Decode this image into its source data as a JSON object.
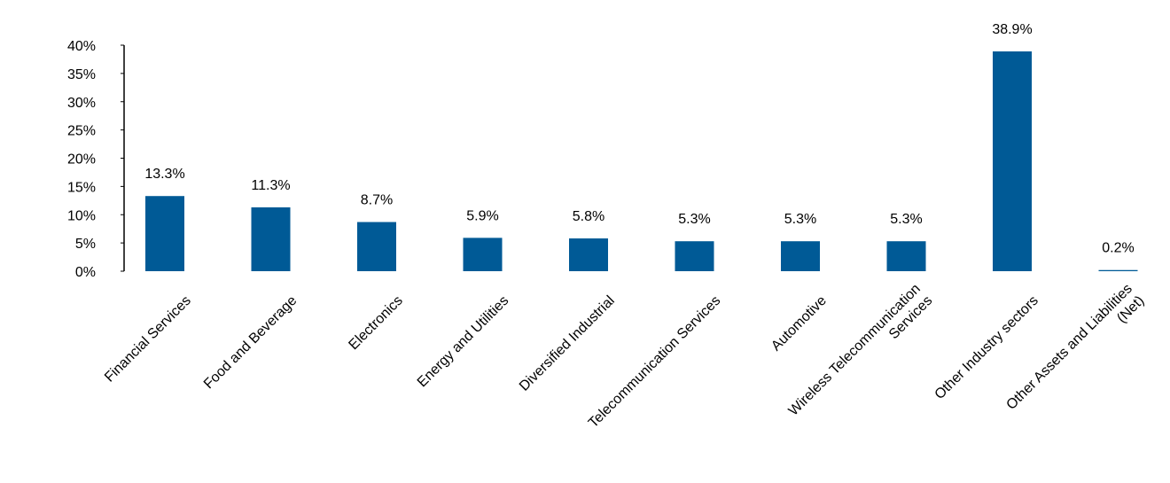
{
  "chart_data": {
    "type": "bar",
    "title": "",
    "xlabel": "",
    "ylabel": "",
    "ylim": [
      0,
      40
    ],
    "yticks": [
      0,
      5,
      10,
      15,
      20,
      25,
      30,
      35,
      40
    ],
    "ytick_labels": [
      "0%",
      "5%",
      "10%",
      "15%",
      "20%",
      "25%",
      "30%",
      "35%",
      "40%"
    ],
    "grid": false,
    "legend": "none",
    "bar_color": "#005a96",
    "categories": [
      [
        "Financial Services"
      ],
      [
        "Food and Beverage"
      ],
      [
        "Electronics"
      ],
      [
        "Energy and Utilities"
      ],
      [
        "Diversified Industrial"
      ],
      [
        "Telecommunication Services"
      ],
      [
        "Automotive"
      ],
      [
        "Wireless Telecommunication",
        "Services"
      ],
      [
        "Other Industry sectors"
      ],
      [
        "Other Assets and Liabilities",
        "(Net)"
      ]
    ],
    "values": [
      13.3,
      11.3,
      8.7,
      5.9,
      5.8,
      5.3,
      5.3,
      5.3,
      38.9,
      0.2
    ],
    "data_labels": [
      "13.3%",
      "11.3%",
      "8.7%",
      "5.9%",
      "5.8%",
      "5.3%",
      "5.3%",
      "5.3%",
      "38.9%",
      "0.2%"
    ]
  }
}
